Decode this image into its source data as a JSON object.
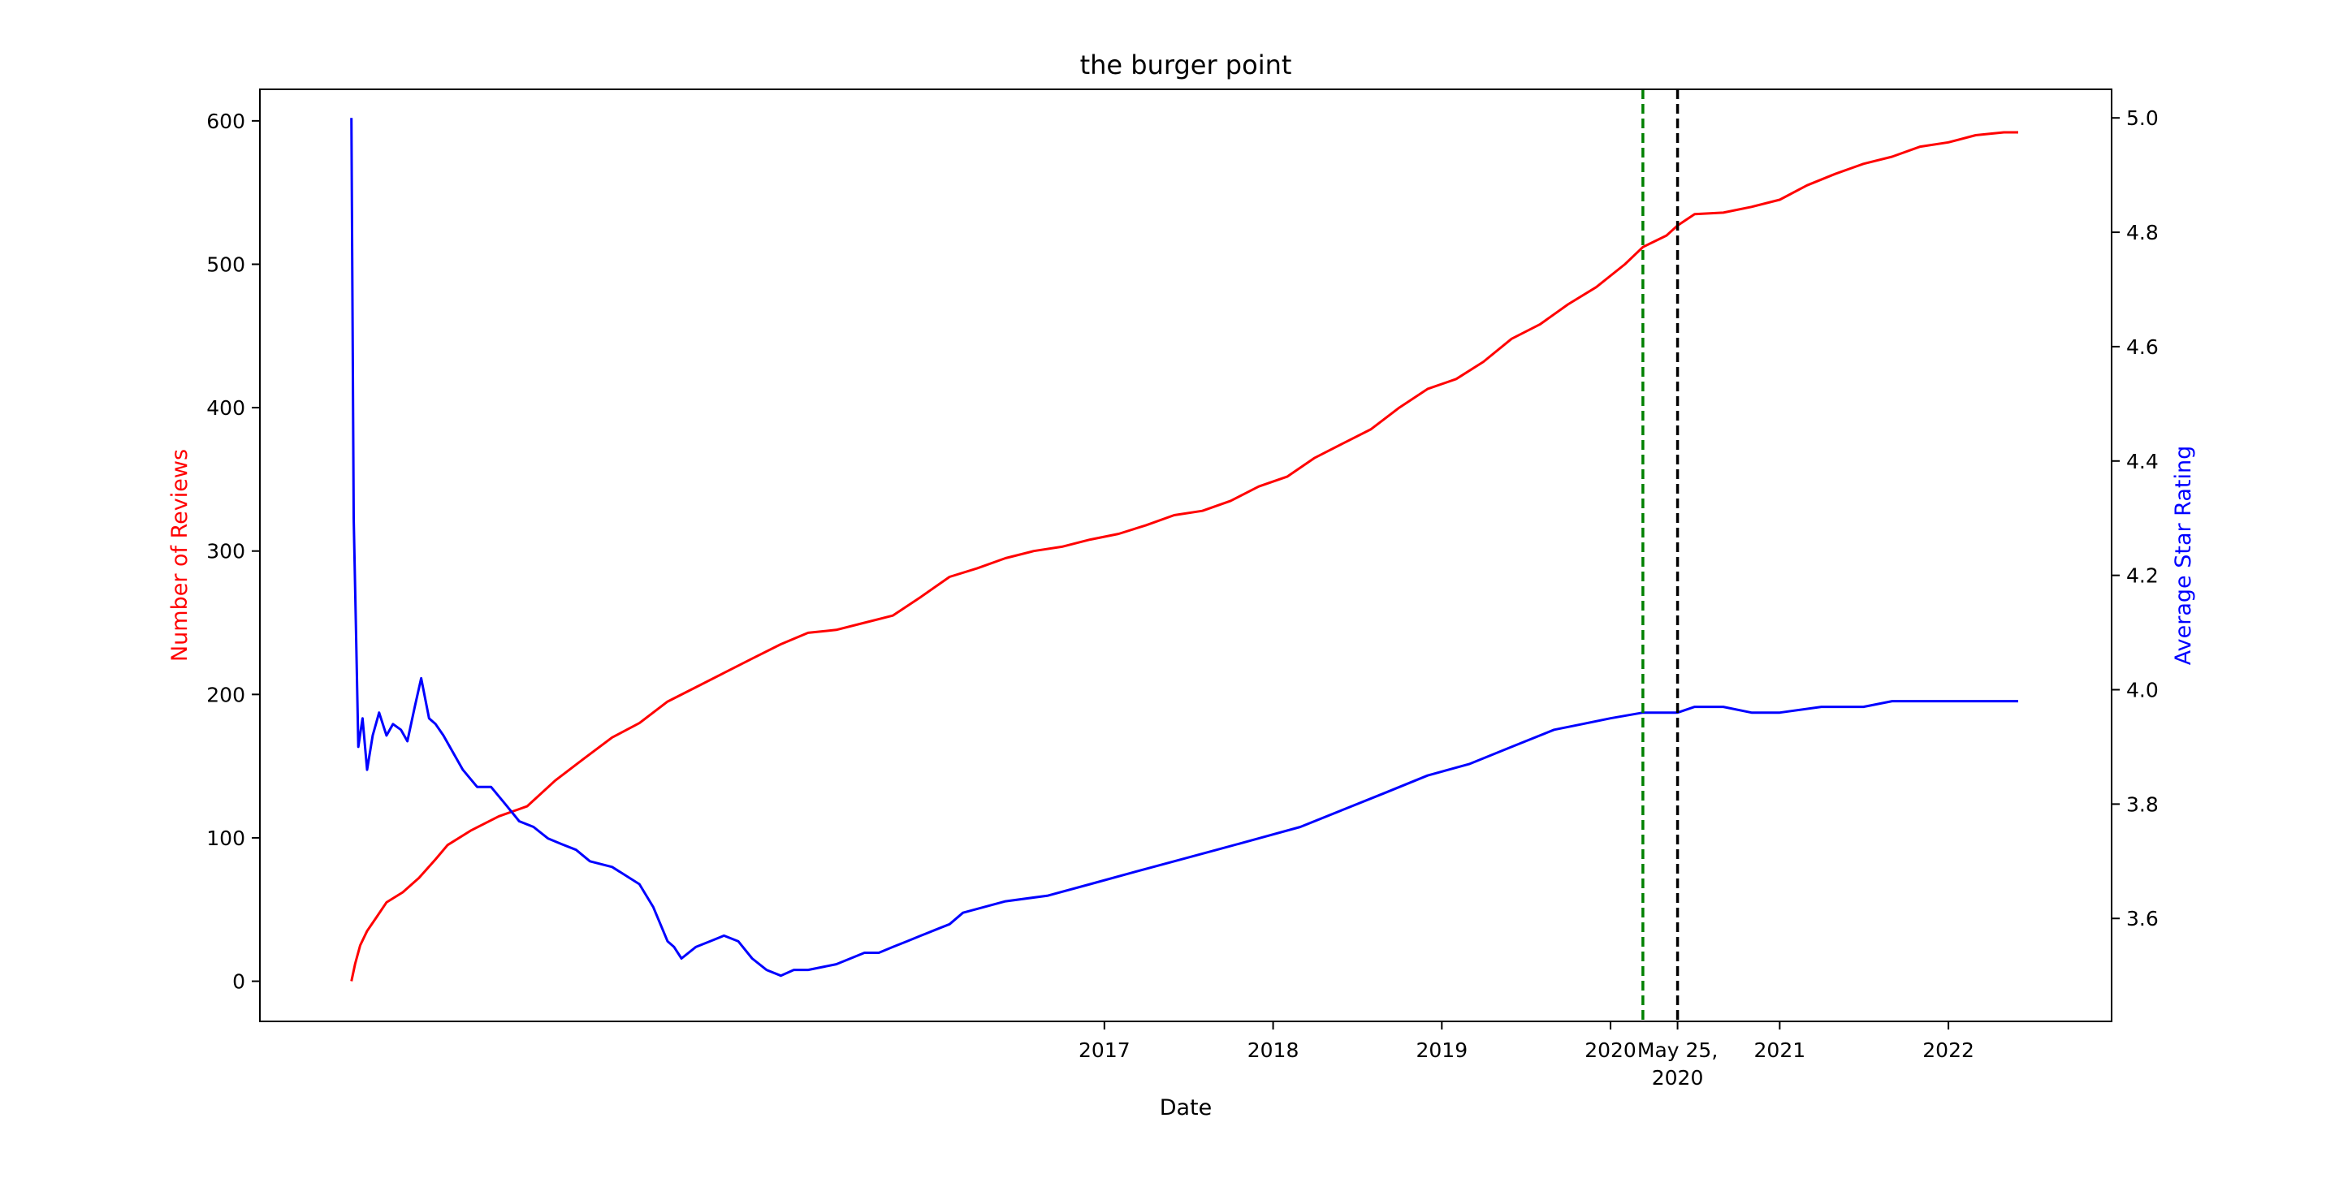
{
  "chart_data": {
    "type": "line",
    "title": "the burger point",
    "xlabel": "Date",
    "ylabel_left": "Number of Reviews",
    "ylabel_right": "Average Star Rating",
    "colors": {
      "reviews": "#ff0000",
      "rating": "#0000ff",
      "green_marker": "#008000",
      "black_marker": "#000000"
    },
    "xlim": [
      "2012-01-01",
      "2022-12-20"
    ],
    "x_ticks": [
      {
        "date": "2017-01-01",
        "label": "2017"
      },
      {
        "date": "2018-01-01",
        "label": "2018"
      },
      {
        "date": "2019-01-01",
        "label": "2019"
      },
      {
        "date": "2020-01-01",
        "label": "2020"
      },
      {
        "date": "2020-05-25",
        "label": "May 25,",
        "label2": "2020"
      },
      {
        "date": "2021-01-01",
        "label": "2021"
      },
      {
        "date": "2022-01-01",
        "label": "2022"
      }
    ],
    "ylim_left": [
      -28,
      622
    ],
    "y_ticks_left": [
      0,
      100,
      200,
      300,
      400,
      500,
      600
    ],
    "ylim_right": [
      3.42,
      5.05
    ],
    "y_ticks_right": [
      3.6,
      3.8,
      4.0,
      4.2,
      4.4,
      4.6,
      4.8,
      5.0
    ],
    "vlines": [
      {
        "date": "2020-03-11",
        "color": "green",
        "style": "dashed"
      },
      {
        "date": "2020-05-25",
        "color": "black",
        "style": "dashed"
      }
    ],
    "series": [
      {
        "axis": "left",
        "color": "#ff0000",
        "x": [
          "2012-07-17",
          "2012-07-25",
          "2012-08-05",
          "2012-08-20",
          "2012-09-10",
          "2012-10-01",
          "2012-11-05",
          "2012-12-10",
          "2013-01-15",
          "2013-02-10",
          "2013-04-01",
          "2013-06-01",
          "2013-08-01",
          "2013-10-01",
          "2013-12-01",
          "2014-02-01",
          "2014-04-01",
          "2014-06-01",
          "2014-08-01",
          "2014-10-01",
          "2014-12-01",
          "2015-02-01",
          "2015-04-01",
          "2015-06-01",
          "2015-08-01",
          "2015-10-01",
          "2015-12-01",
          "2016-02-01",
          "2016-04-01",
          "2016-06-01",
          "2016-08-01",
          "2016-10-01",
          "2016-12-01",
          "2017-02-01",
          "2017-04-01",
          "2017-06-01",
          "2017-08-01",
          "2017-10-01",
          "2017-12-01",
          "2018-02-01",
          "2018-04-01",
          "2018-06-01",
          "2018-08-01",
          "2018-10-01",
          "2018-12-01",
          "2019-02-01",
          "2019-04-01",
          "2019-06-01",
          "2019-08-01",
          "2019-10-01",
          "2019-12-01",
          "2020-02-01",
          "2020-03-11",
          "2020-05-01",
          "2020-05-25",
          "2020-07-01",
          "2020-09-01",
          "2020-11-01",
          "2021-01-01",
          "2021-03-01",
          "2021-05-01",
          "2021-07-01",
          "2021-09-01",
          "2021-11-01",
          "2022-01-01",
          "2022-03-01",
          "2022-05-01",
          "2022-06-01"
        ],
        "values": [
          0,
          12,
          25,
          35,
          45,
          55,
          62,
          72,
          85,
          95,
          105,
          115,
          122,
          140,
          155,
          170,
          180,
          195,
          205,
          215,
          225,
          235,
          243,
          245,
          250,
          255,
          268,
          282,
          288,
          295,
          300,
          303,
          308,
          312,
          318,
          325,
          328,
          335,
          345,
          352,
          365,
          375,
          385,
          400,
          413,
          420,
          432,
          448,
          458,
          472,
          484,
          500,
          512,
          520,
          527,
          535,
          536,
          540,
          545,
          555,
          563,
          570,
          575,
          582,
          585,
          590,
          592,
          592
        ]
      },
      {
        "axis": "right",
        "color": "#0000ff",
        "x": [
          "2012-07-17",
          "2012-07-22",
          "2012-07-27",
          "2012-08-01",
          "2012-08-10",
          "2012-08-20",
          "2012-09-01",
          "2012-09-15",
          "2012-10-01",
          "2012-10-15",
          "2012-11-01",
          "2012-11-15",
          "2012-12-01",
          "2012-12-15",
          "2013-01-01",
          "2013-01-15",
          "2013-02-01",
          "2013-02-15",
          "2013-03-01",
          "2013-03-15",
          "2013-04-15",
          "2013-05-15",
          "2013-06-15",
          "2013-07-15",
          "2013-08-15",
          "2013-09-15",
          "2013-10-15",
          "2013-11-15",
          "2013-12-15",
          "2014-02-01",
          "2014-04-01",
          "2014-05-01",
          "2014-06-01",
          "2014-06-15",
          "2014-07-01",
          "2014-08-01",
          "2014-09-01",
          "2014-10-01",
          "2014-11-01",
          "2014-12-01",
          "2015-01-01",
          "2015-02-01",
          "2015-03-01",
          "2015-04-01",
          "2015-06-01",
          "2015-08-01",
          "2015-09-01",
          "2015-10-01",
          "2015-11-01",
          "2015-12-01",
          "2016-01-01",
          "2016-02-01",
          "2016-03-01",
          "2016-06-01",
          "2016-09-01",
          "2016-12-01",
          "2017-03-01",
          "2017-06-01",
          "2017-09-01",
          "2017-12-01",
          "2018-03-01",
          "2018-06-01",
          "2018-09-01",
          "2018-12-01",
          "2019-03-01",
          "2019-06-01",
          "2019-09-01",
          "2019-11-01",
          "2020-01-01",
          "2020-03-11",
          "2020-05-25",
          "2020-07-01",
          "2020-09-01",
          "2020-11-01",
          "2021-01-01",
          "2021-04-01",
          "2021-07-01",
          "2021-09-01",
          "2021-12-01",
          "2022-03-01",
          "2022-06-01"
        ],
        "values": [
          5.0,
          4.3,
          4.1,
          3.9,
          3.95,
          3.86,
          3.92,
          3.96,
          3.92,
          3.94,
          3.93,
          3.91,
          3.97,
          4.02,
          3.95,
          3.94,
          3.92,
          3.9,
          3.88,
          3.86,
          3.83,
          3.83,
          3.8,
          3.77,
          3.76,
          3.74,
          3.73,
          3.72,
          3.7,
          3.69,
          3.66,
          3.62,
          3.56,
          3.55,
          3.53,
          3.55,
          3.56,
          3.57,
          3.56,
          3.53,
          3.51,
          3.5,
          3.51,
          3.51,
          3.52,
          3.54,
          3.54,
          3.55,
          3.56,
          3.57,
          3.58,
          3.59,
          3.61,
          3.63,
          3.64,
          3.66,
          3.68,
          3.7,
          3.72,
          3.74,
          3.76,
          3.79,
          3.82,
          3.85,
          3.87,
          3.9,
          3.93,
          3.94,
          3.95,
          3.96,
          3.96,
          3.97,
          3.97,
          3.96,
          3.96,
          3.97,
          3.97,
          3.98,
          3.98,
          3.98,
          3.98
        ]
      }
    ]
  }
}
